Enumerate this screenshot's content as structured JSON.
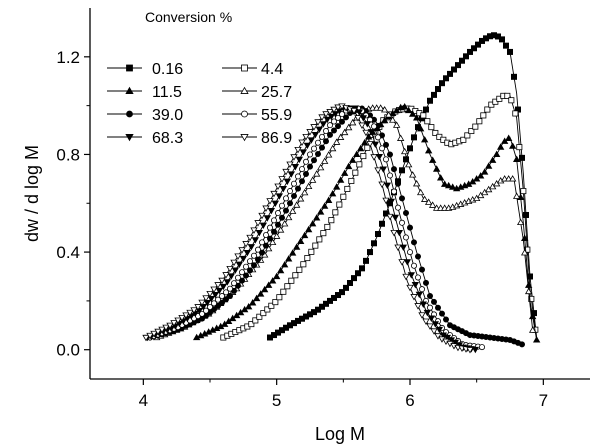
{
  "chart_data": {
    "type": "line",
    "xlabel": "Log M",
    "ylabel": "dw / d log M",
    "legend_title": "Conversion %",
    "legend_position": "top-left",
    "grid": false,
    "xlim": [
      3.6,
      7.35
    ],
    "ylim": [
      -0.12,
      1.4
    ],
    "x_ticks": [
      4,
      5,
      6,
      7
    ],
    "x_tick_labels": [
      "4",
      "5",
      "6",
      "7"
    ],
    "y_ticks": [
      0.0,
      0.4,
      0.8,
      1.2
    ],
    "y_tick_labels": [
      "0.0",
      "0.4",
      "0.8",
      "1.2"
    ],
    "series": [
      {
        "name": "0.16",
        "marker": "square-filled",
        "x": [
          4.95,
          5.1,
          5.3,
          5.5,
          5.65,
          5.75,
          5.85,
          5.95,
          6.05,
          6.15,
          6.25,
          6.35,
          6.45,
          6.55,
          6.62,
          6.68,
          6.75,
          6.8,
          6.85,
          6.9,
          6.95
        ],
        "y": [
          0.05,
          0.1,
          0.16,
          0.24,
          0.34,
          0.46,
          0.6,
          0.75,
          0.9,
          1.02,
          1.1,
          1.16,
          1.22,
          1.27,
          1.29,
          1.28,
          1.22,
          1.05,
          0.72,
          0.3,
          0.05
        ]
      },
      {
        "name": "4.4",
        "marker": "square-open",
        "x": [
          4.6,
          4.8,
          5.0,
          5.2,
          5.4,
          5.55,
          5.7,
          5.8,
          5.9,
          6.0,
          6.1,
          6.2,
          6.3,
          6.4,
          6.5,
          6.6,
          6.7,
          6.75,
          6.8,
          6.85,
          6.9,
          6.95
        ],
        "y": [
          0.05,
          0.1,
          0.2,
          0.35,
          0.52,
          0.68,
          0.85,
          0.94,
          0.98,
          0.99,
          0.96,
          0.88,
          0.84,
          0.86,
          0.92,
          1.0,
          1.04,
          1.04,
          0.95,
          0.65,
          0.25,
          0.04
        ]
      },
      {
        "name": "11.5",
        "marker": "triangle-up-filled",
        "x": [
          4.4,
          4.6,
          4.8,
          5.0,
          5.2,
          5.4,
          5.55,
          5.7,
          5.85,
          5.95,
          6.05,
          6.15,
          6.25,
          6.35,
          6.45,
          6.55,
          6.65,
          6.7,
          6.75,
          6.8,
          6.85,
          6.9,
          6.95
        ],
        "y": [
          0.05,
          0.1,
          0.18,
          0.3,
          0.46,
          0.62,
          0.76,
          0.88,
          0.96,
          1.0,
          0.95,
          0.8,
          0.68,
          0.66,
          0.68,
          0.72,
          0.8,
          0.85,
          0.87,
          0.78,
          0.52,
          0.2,
          0.04
        ]
      },
      {
        "name": "25.7",
        "marker": "triangle-up-open",
        "x": [
          4.1,
          4.3,
          4.5,
          4.7,
          4.9,
          5.1,
          5.3,
          5.45,
          5.6,
          5.7,
          5.8,
          5.9,
          6.0,
          6.1,
          6.2,
          6.3,
          6.4,
          6.5,
          6.6,
          6.7,
          6.78,
          6.85,
          6.92
        ],
        "y": [
          0.05,
          0.09,
          0.15,
          0.25,
          0.38,
          0.55,
          0.72,
          0.85,
          0.95,
          0.99,
          0.99,
          0.92,
          0.74,
          0.62,
          0.58,
          0.58,
          0.6,
          0.62,
          0.66,
          0.7,
          0.7,
          0.45,
          0.08
        ]
      },
      {
        "name": "39.0",
        "marker": "circle-filled",
        "x": [
          4.05,
          4.25,
          4.45,
          4.65,
          4.85,
          5.05,
          5.25,
          5.4,
          5.55,
          5.65,
          5.75,
          5.85,
          5.95,
          6.05,
          6.15,
          6.3,
          6.45,
          6.6,
          6.75,
          6.85
        ],
        "y": [
          0.05,
          0.08,
          0.13,
          0.22,
          0.36,
          0.55,
          0.75,
          0.88,
          0.97,
          0.99,
          0.93,
          0.8,
          0.6,
          0.4,
          0.22,
          0.1,
          0.06,
          0.05,
          0.04,
          0.02
        ]
      },
      {
        "name": "55.9",
        "marker": "circle-open",
        "x": [
          4.05,
          4.25,
          4.45,
          4.65,
          4.85,
          5.05,
          5.25,
          5.4,
          5.52,
          5.62,
          5.72,
          5.82,
          5.92,
          6.02,
          6.12,
          6.25,
          6.4,
          6.55
        ],
        "y": [
          0.05,
          0.09,
          0.15,
          0.25,
          0.4,
          0.6,
          0.8,
          0.92,
          0.98,
          0.99,
          0.93,
          0.78,
          0.56,
          0.36,
          0.2,
          0.08,
          0.02,
          0.01
        ]
      },
      {
        "name": "68.3",
        "marker": "triangle-down-filled",
        "x": [
          4.03,
          4.22,
          4.42,
          4.62,
          4.82,
          5.02,
          5.22,
          5.37,
          5.5,
          5.6,
          5.7,
          5.8,
          5.9,
          6.0,
          6.12,
          6.25,
          6.4,
          6.5
        ],
        "y": [
          0.05,
          0.09,
          0.16,
          0.27,
          0.43,
          0.63,
          0.83,
          0.94,
          0.99,
          0.99,
          0.91,
          0.74,
          0.52,
          0.32,
          0.16,
          0.06,
          0.01,
          0.0
        ]
      },
      {
        "name": "86.9",
        "marker": "triangle-down-open",
        "x": [
          4.02,
          4.2,
          4.4,
          4.6,
          4.8,
          5.0,
          5.2,
          5.35,
          5.48,
          5.58,
          5.68,
          5.78,
          5.88,
          5.98,
          6.1,
          6.22,
          6.35,
          6.45
        ],
        "y": [
          0.05,
          0.1,
          0.17,
          0.29,
          0.46,
          0.66,
          0.86,
          0.96,
          1.0,
          0.98,
          0.88,
          0.7,
          0.48,
          0.28,
          0.13,
          0.05,
          0.01,
          0.0
        ]
      }
    ]
  }
}
